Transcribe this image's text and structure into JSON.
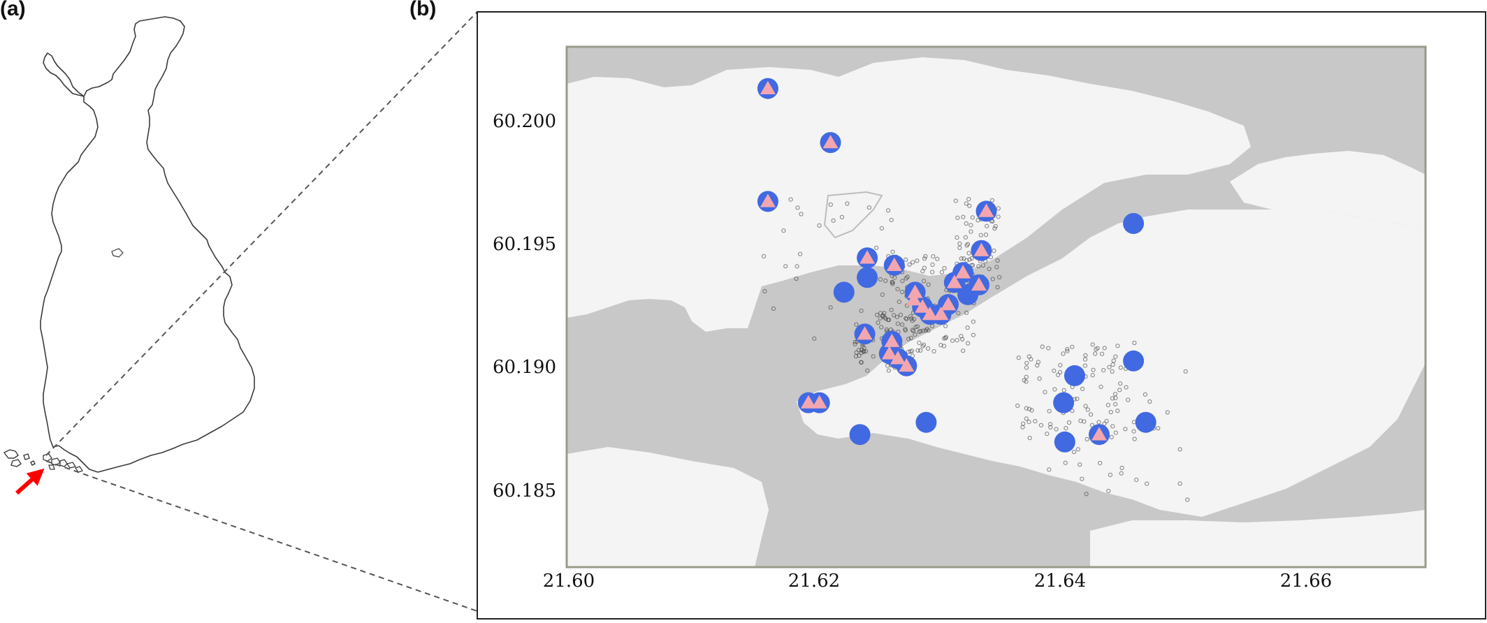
{
  "panels": {
    "a": {
      "label": "(a)"
    },
    "b": {
      "label": "(b)"
    }
  },
  "map": {
    "type": "point-map",
    "x_ticks": [
      "21.60",
      "21.62",
      "21.64",
      "21.66"
    ],
    "y_ticks": [
      "60.200",
      "60.195",
      "60.190",
      "60.185"
    ],
    "xlim": [
      21.598,
      21.668
    ],
    "ylim": [
      60.1818,
      60.203
    ],
    "colors": {
      "water": "#c8c8c8",
      "land": "#f4f4f4",
      "circle_marker": "#4169e1",
      "triangle_marker": "#f4a6ae",
      "small_points": "#333333",
      "arrow": "#ff0000",
      "dashed_lines": "#555555"
    },
    "circle_sites": [
      [
        21.6144,
        60.2013
      ],
      [
        21.6195,
        60.1991
      ],
      [
        21.6144,
        60.1967
      ],
      [
        21.6322,
        60.1963
      ],
      [
        21.6225,
        60.1944
      ],
      [
        21.6247,
        60.1941
      ],
      [
        21.6225,
        60.1936
      ],
      [
        21.6206,
        60.193
      ],
      [
        21.6264,
        60.193
      ],
      [
        21.6318,
        60.1947
      ],
      [
        21.6303,
        60.1938
      ],
      [
        21.6316,
        60.1933
      ],
      [
        21.6296,
        60.1934
      ],
      [
        21.6307,
        60.1929
      ],
      [
        21.627,
        60.1924
      ],
      [
        21.6291,
        60.1925
      ],
      [
        21.6276,
        60.1921
      ],
      [
        21.6285,
        60.1921
      ],
      [
        21.6223,
        60.1913
      ],
      [
        21.6245,
        60.191
      ],
      [
        21.6243,
        60.1905
      ],
      [
        21.625,
        60.1903
      ],
      [
        21.6257,
        60.19
      ],
      [
        21.6177,
        60.1885
      ],
      [
        21.6186,
        60.1885
      ],
      [
        21.6273,
        60.1877
      ],
      [
        21.6219,
        60.1872
      ],
      [
        21.6385,
        60.1885
      ],
      [
        21.6394,
        60.1896
      ],
      [
        21.6386,
        60.1869
      ],
      [
        21.6414,
        60.1872
      ],
      [
        21.6442,
        60.1902
      ],
      [
        21.6452,
        60.1877
      ],
      [
        21.6442,
        60.1958
      ]
    ],
    "triangle_sites": [
      [
        21.6144,
        60.2013
      ],
      [
        21.6195,
        60.1991
      ],
      [
        21.6144,
        60.1967
      ],
      [
        21.6322,
        60.1963
      ],
      [
        21.6225,
        60.1944
      ],
      [
        21.6247,
        60.1941
      ],
      [
        21.6264,
        60.193
      ],
      [
        21.6318,
        60.1947
      ],
      [
        21.6303,
        60.1938
      ],
      [
        21.6316,
        60.1933
      ],
      [
        21.6296,
        60.1934
      ],
      [
        21.627,
        60.1924
      ],
      [
        21.6291,
        60.1925
      ],
      [
        21.6276,
        60.1921
      ],
      [
        21.6285,
        60.1921
      ],
      [
        21.6223,
        60.1913
      ],
      [
        21.6245,
        60.191
      ],
      [
        21.6243,
        60.1905
      ],
      [
        21.625,
        60.1903
      ],
      [
        21.6257,
        60.19
      ],
      [
        21.6177,
        60.1885
      ],
      [
        21.6186,
        60.1885
      ],
      [
        21.6414,
        60.1872
      ],
      [
        21.6263,
        60.1927
      ]
    ]
  }
}
